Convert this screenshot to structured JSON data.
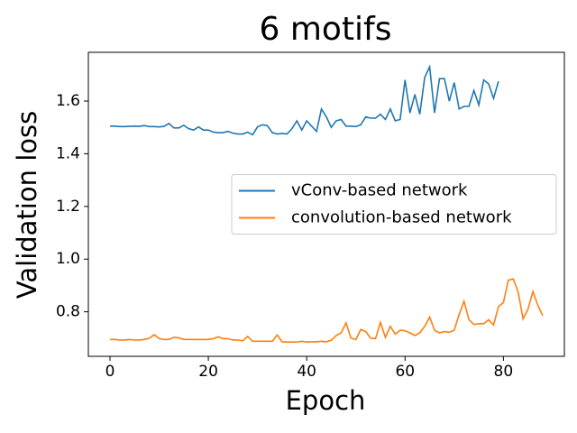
{
  "chart_data": {
    "type": "line",
    "title": "6 motifs",
    "x_label": "Epoch",
    "y_label": "Validation loss",
    "xlim": [
      -4.4,
      92.4
    ],
    "xticks": [
      0,
      20,
      40,
      60,
      80
    ],
    "ylim": [
      0.631,
      1.785
    ],
    "yticks": [
      0.8,
      {
        "value": 1,
        "label": "1.0"
      },
      1.2,
      1.4,
      1.6
    ],
    "grid": false,
    "legend_position": "center right",
    "series": [
      {
        "name": "vConv-based network",
        "color": "#1f77b4",
        "values": [
          1.505,
          1.505,
          1.503,
          1.503,
          1.504,
          1.505,
          1.504,
          1.507,
          1.503,
          1.503,
          1.502,
          1.504,
          1.515,
          1.498,
          1.498,
          1.508,
          1.495,
          1.49,
          1.502,
          1.49,
          1.49,
          1.482,
          1.48,
          1.48,
          1.485,
          1.478,
          1.475,
          1.475,
          1.482,
          1.472,
          1.502,
          1.51,
          1.507,
          1.48,
          1.475,
          1.477,
          1.475,
          1.495,
          1.525,
          1.49,
          1.525,
          1.505,
          1.485,
          1.57,
          1.54,
          1.5,
          1.525,
          1.53,
          1.505,
          1.505,
          1.503,
          1.51,
          1.54,
          1.535,
          1.535,
          1.55,
          1.53,
          1.57,
          1.525,
          1.53,
          1.68,
          1.555,
          1.625,
          1.55,
          1.69,
          1.73,
          1.555,
          1.685,
          1.685,
          1.6,
          1.67,
          1.57,
          1.58,
          1.58,
          1.64,
          1.585,
          1.68,
          1.665,
          1.61,
          1.675
        ]
      },
      {
        "name": "convolution-based network",
        "color": "#ff7f0e",
        "values": [
          0.695,
          0.695,
          0.693,
          0.693,
          0.695,
          0.693,
          0.693,
          0.695,
          0.7,
          0.713,
          0.698,
          0.695,
          0.695,
          0.703,
          0.701,
          0.695,
          0.695,
          0.695,
          0.695,
          0.695,
          0.695,
          0.698,
          0.705,
          0.698,
          0.698,
          0.693,
          0.693,
          0.69,
          0.707,
          0.688,
          0.688,
          0.688,
          0.688,
          0.688,
          0.712,
          0.686,
          0.685,
          0.685,
          0.685,
          0.688,
          0.685,
          0.686,
          0.686,
          0.688,
          0.686,
          0.692,
          0.71,
          0.72,
          0.758,
          0.7,
          0.695,
          0.733,
          0.725,
          0.7,
          0.698,
          0.76,
          0.703,
          0.745,
          0.715,
          0.73,
          0.728,
          0.72,
          0.71,
          0.72,
          0.745,
          0.78,
          0.73,
          0.72,
          0.725,
          0.722,
          0.73,
          0.79,
          0.84,
          0.77,
          0.752,
          0.755,
          0.755,
          0.77,
          0.75,
          0.82,
          0.835,
          0.92,
          0.925,
          0.875,
          0.773,
          0.81,
          0.877,
          0.825,
          0.785
        ]
      }
    ]
  }
}
